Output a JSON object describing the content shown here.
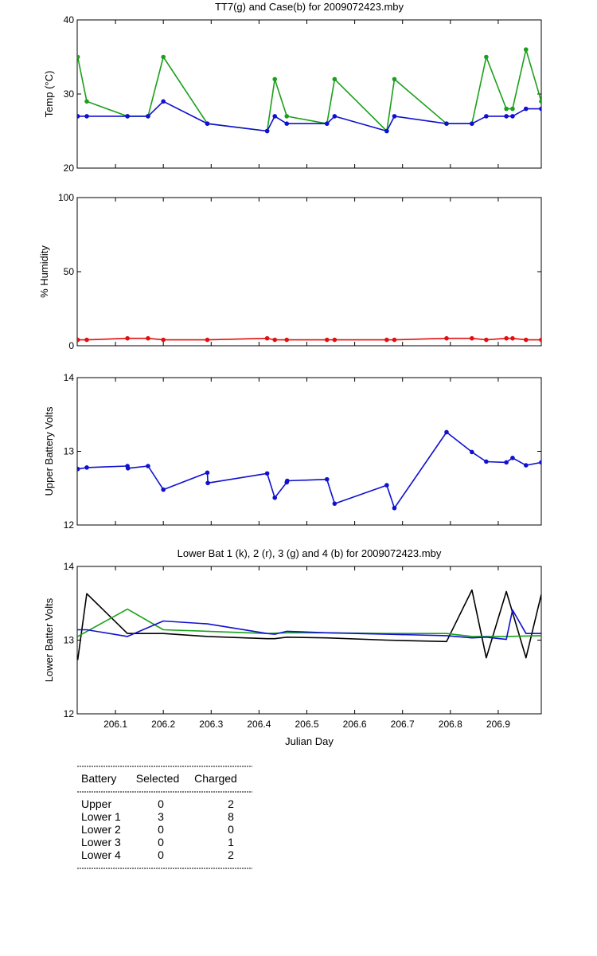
{
  "chart_data": [
    {
      "type": "line",
      "title": "TT7(g) and Case(b) for 2009072423.mby",
      "xlabel": "",
      "ylabel": "Temp (°C)",
      "xlim": [
        206.02,
        206.99
      ],
      "ylim": [
        20,
        40
      ],
      "yticks": [
        20,
        30,
        40
      ],
      "markers": true,
      "series": [
        {
          "color": "#1aa01a",
          "x": [
            206.021,
            206.04,
            206.125,
            206.168,
            206.2,
            206.292,
            206.417,
            206.433,
            206.458,
            206.542,
            206.558,
            206.667,
            206.683,
            206.792,
            206.845,
            206.875,
            206.917,
            206.93,
            206.958,
            206.99
          ],
          "y": [
            35,
            29,
            27,
            27,
            35,
            26,
            25,
            32,
            27,
            26,
            32,
            25,
            32,
            26,
            26,
            35,
            28,
            28,
            36,
            29
          ]
        },
        {
          "color": "#1010d0",
          "x": [
            206.021,
            206.04,
            206.125,
            206.168,
            206.2,
            206.292,
            206.417,
            206.433,
            206.458,
            206.542,
            206.558,
            206.667,
            206.683,
            206.792,
            206.845,
            206.875,
            206.917,
            206.93,
            206.958,
            206.99
          ],
          "y": [
            27,
            27,
            27,
            27,
            29,
            26,
            25,
            27,
            26,
            26,
            27,
            25,
            27,
            26,
            26,
            27,
            27,
            27,
            28,
            28
          ]
        }
      ]
    },
    {
      "type": "line",
      "title": "",
      "xlabel": "",
      "ylabel": "% Humidity",
      "xlim": [
        206.02,
        206.99
      ],
      "ylim": [
        0,
        100
      ],
      "yticks": [
        0,
        50,
        100
      ],
      "markers": true,
      "series": [
        {
          "color": "#e01010",
          "x": [
            206.021,
            206.04,
            206.125,
            206.168,
            206.2,
            206.292,
            206.417,
            206.433,
            206.458,
            206.542,
            206.558,
            206.667,
            206.683,
            206.792,
            206.845,
            206.875,
            206.917,
            206.93,
            206.958,
            206.99
          ],
          "y": [
            4,
            4,
            5,
            5,
            4,
            4,
            5,
            4,
            4,
            4,
            4,
            4,
            4,
            5,
            5,
            4,
            5,
            5,
            4,
            4
          ]
        }
      ]
    },
    {
      "type": "line",
      "title": "",
      "xlabel": "",
      "ylabel": "Upper Battery Volts",
      "xlim": [
        206.02,
        206.99
      ],
      "ylim": [
        12,
        14
      ],
      "yticks": [
        12,
        13,
        14
      ],
      "markers": true,
      "series": [
        {
          "color": "#1010d0",
          "x": [
            206.021,
            206.04,
            206.125,
            206.126,
            206.168,
            206.2,
            206.292,
            206.293,
            206.417,
            206.433,
            206.458,
            206.459,
            206.542,
            206.558,
            206.667,
            206.683,
            206.792,
            206.845,
            206.875,
            206.917,
            206.93,
            206.958,
            206.99
          ],
          "y": [
            12.76,
            12.78,
            12.8,
            12.77,
            12.8,
            12.48,
            12.71,
            12.57,
            12.7,
            12.37,
            12.58,
            12.6,
            12.62,
            12.29,
            12.54,
            12.23,
            13.26,
            12.99,
            12.86,
            12.85,
            12.91,
            12.81,
            12.85
          ]
        }
      ]
    },
    {
      "type": "line",
      "title": "Lower Bat 1 (k), 2 (r), 3 (g) and 4 (b) for 2009072423.mby",
      "xlabel": "Julian Day",
      "ylabel": "Lower Batter Volts",
      "xlim": [
        206.02,
        206.99
      ],
      "ylim": [
        12,
        14
      ],
      "yticks": [
        12,
        13,
        14
      ],
      "xticks": [
        "206.1",
        "206.2",
        "206.3",
        "206.4",
        "206.5",
        "206.6",
        "206.7",
        "206.8",
        "206.9"
      ],
      "markers": false,
      "series": [
        {
          "color": "#000000",
          "x": [
            206.021,
            206.04,
            206.125,
            206.2,
            206.292,
            206.417,
            206.433,
            206.458,
            206.542,
            206.667,
            206.792,
            206.845,
            206.875,
            206.917,
            206.958,
            206.99
          ],
          "y": [
            12.73,
            13.63,
            13.09,
            13.09,
            13.05,
            13.02,
            13.02,
            13.04,
            13.03,
            13.0,
            12.98,
            13.68,
            12.76,
            13.66,
            12.76,
            13.62
          ]
        },
        {
          "color": "#1aa01a",
          "x": [
            206.021,
            206.125,
            206.2,
            206.292,
            206.417,
            206.458,
            206.542,
            206.667,
            206.792,
            206.845,
            206.917,
            206.99
          ],
          "y": [
            13.05,
            13.42,
            13.14,
            13.12,
            13.09,
            13.1,
            13.1,
            13.09,
            13.09,
            13.05,
            13.05,
            13.06
          ]
        },
        {
          "color": "#1010d0",
          "x": [
            206.021,
            206.04,
            206.125,
            206.2,
            206.292,
            206.417,
            206.433,
            206.458,
            206.542,
            206.667,
            206.792,
            206.845,
            206.875,
            206.917,
            206.93,
            206.958,
            206.99
          ],
          "y": [
            13.14,
            13.14,
            13.05,
            13.26,
            13.22,
            13.09,
            13.08,
            13.12,
            13.1,
            13.08,
            13.06,
            13.03,
            13.04,
            13.01,
            13.41,
            13.09,
            13.09
          ]
        }
      ]
    }
  ],
  "summary_table": {
    "headers": [
      "Battery",
      "Selected",
      "Charged"
    ],
    "rows": [
      [
        "Upper",
        "0",
        "2"
      ],
      [
        "Lower 1",
        "3",
        "8"
      ],
      [
        "Lower 2",
        "0",
        "0"
      ],
      [
        "Lower 3",
        "0",
        "1"
      ],
      [
        "Lower 4",
        "0",
        "2"
      ]
    ]
  }
}
